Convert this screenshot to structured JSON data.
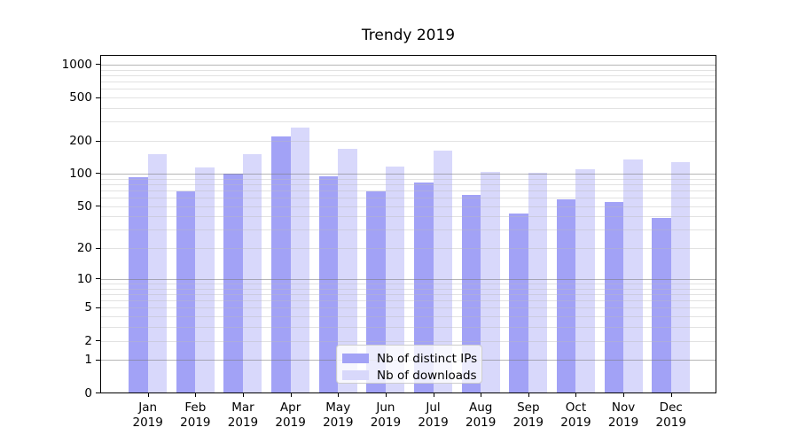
{
  "title": "Trendy 2019",
  "chart_data": {
    "type": "bar",
    "title": "Trendy 2019",
    "categories": [
      "Jan 2019",
      "Feb 2019",
      "Mar 2019",
      "Apr 2019",
      "May 2019",
      "Jun 2019",
      "Jul 2019",
      "Aug 2019",
      "Sep 2019",
      "Oct 2019",
      "Nov 2019",
      "Dec 2019"
    ],
    "series": [
      {
        "name": "Nb of distinct IPs",
        "color": "#a2a2f6",
        "values": [
          93,
          68,
          100,
          220,
          95,
          69,
          83,
          64,
          43,
          58,
          55,
          39
        ]
      },
      {
        "name": "Nb of downloads",
        "color": "#d8d8fb",
        "values": [
          151,
          113,
          151,
          265,
          170,
          116,
          163,
          103,
          102,
          110,
          135,
          127
        ]
      }
    ],
    "xlabel": "",
    "ylabel": "",
    "yscale": "symlog",
    "ylim": [
      0,
      1216
    ],
    "yticks": [
      {
        "value": 0,
        "label": "0"
      },
      {
        "value": 1,
        "label": "1"
      },
      {
        "value": 2,
        "label": "2"
      },
      {
        "value": 5,
        "label": "5"
      },
      {
        "value": 10,
        "label": "10"
      },
      {
        "value": 20,
        "label": "20"
      },
      {
        "value": 50,
        "label": "50"
      },
      {
        "value": 100,
        "label": "100"
      },
      {
        "value": 200,
        "label": "200"
      },
      {
        "value": 500,
        "label": "500"
      },
      {
        "value": 1000,
        "label": "1000"
      }
    ],
    "major_grid_values": [
      1,
      10,
      100,
      1000
    ],
    "minor_grid_values": [
      2,
      3,
      4,
      5,
      6,
      7,
      8,
      9,
      20,
      30,
      40,
      50,
      60,
      70,
      80,
      90,
      200,
      300,
      400,
      500,
      600,
      700,
      800,
      900
    ],
    "grid": true,
    "legend_position": "lower-center"
  },
  "legend": {
    "items": [
      {
        "label": "Nb of distinct IPs"
      },
      {
        "label": "Nb of downloads"
      }
    ]
  }
}
